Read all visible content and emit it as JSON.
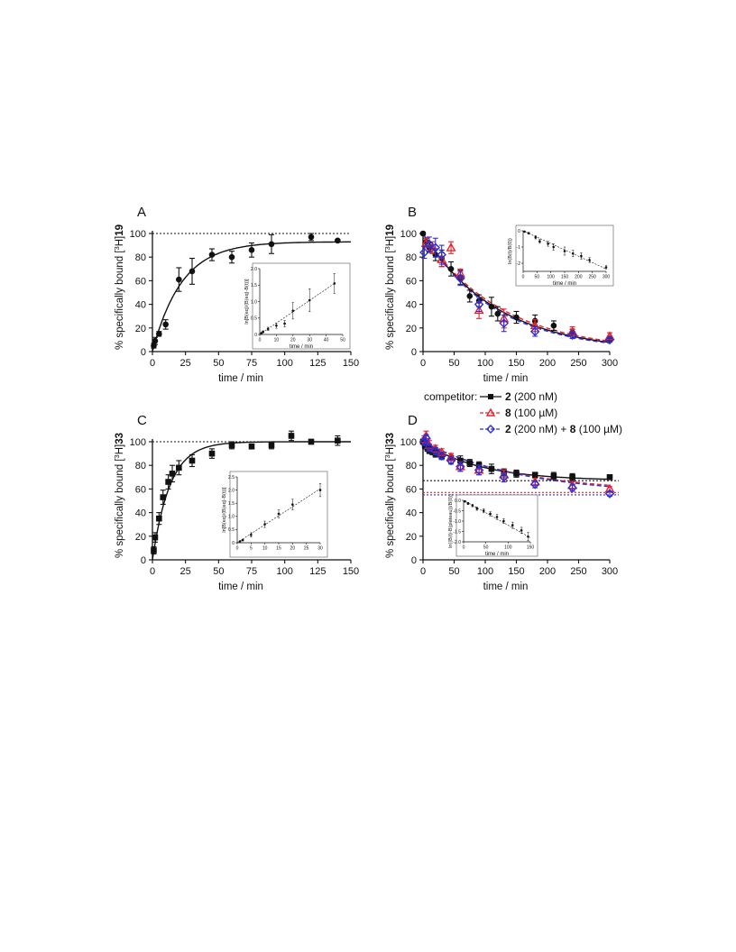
{
  "colors": {
    "black": "#111111",
    "red": "#e8202a",
    "blue": "#2d2fd6"
  },
  "legend": {
    "title": "competitor:",
    "entries": [
      {
        "bold": "2",
        "rest": " (200 nM)",
        "color": "#111111",
        "marker": "square",
        "dash": "solid"
      },
      {
        "bold": "8",
        "rest": " (100 µM)",
        "color": "#e8202a",
        "marker": "triangle",
        "dash": "dashed"
      },
      {
        "bold": "2",
        "rest": " (200 nM) + ",
        "bold2": "8",
        "rest2": " (100 µM)",
        "color": "#2d2fd6",
        "marker": "diamond",
        "dash": "dashed"
      }
    ]
  },
  "chart_data": [
    {
      "panel_label": "A",
      "type": "scatter",
      "xlabel": "time / min",
      "ylabel_prefix": "% specifically bound [",
      "ylabel_iso": "3",
      "ylabel_mid": "H]",
      "ylabel_bold": "19",
      "xlim": [
        0,
        150
      ],
      "ylim": [
        0,
        100
      ],
      "xticks": [
        0,
        25,
        50,
        75,
        100,
        125,
        150
      ],
      "yticks": [
        0,
        20,
        40,
        60,
        80,
        100
      ],
      "hline": 100,
      "marker": "circle",
      "series": [
        {
          "color": "#111111",
          "x": [
            1,
            2,
            5,
            10,
            20,
            30,
            45,
            60,
            75,
            90,
            120,
            140
          ],
          "y": [
            5,
            9,
            15,
            23,
            61,
            68,
            82,
            80,
            86,
            91,
            97,
            94
          ],
          "err": [
            2,
            3,
            2,
            4,
            10,
            11,
            5,
            5,
            6,
            8,
            3,
            1
          ]
        }
      ],
      "fit": {
        "type": "association",
        "plateau": 93,
        "k": 0.045
      },
      "inset": {
        "xlabel": "time / min",
        "ylabel": "ln[B(eq)/(B(eq)-B(t))]",
        "xlim": [
          0,
          50
        ],
        "ylim": [
          0,
          2
        ],
        "xticks": [
          0,
          10,
          20,
          30,
          40,
          50
        ],
        "yticks": [
          0,
          0.5,
          1.0,
          1.5,
          2.0
        ],
        "ytick_labels": [
          "0",
          "0.5",
          "1.0",
          "1.5",
          "2.0"
        ],
        "x": [
          1,
          2,
          5,
          10,
          15,
          20,
          30,
          45
        ],
        "y": [
          0.04,
          0.08,
          0.17,
          0.27,
          0.33,
          0.72,
          1.04,
          1.55
        ],
        "err": [
          0.02,
          0.03,
          0.05,
          0.08,
          0.1,
          0.25,
          0.35,
          0.3
        ],
        "line": [
          [
            0,
            0
          ],
          [
            45,
            1.55
          ]
        ]
      }
    },
    {
      "panel_label": "B",
      "type": "scatter",
      "xlabel": "time / min",
      "ylabel_prefix": "% specifically bound [",
      "ylabel_iso": "3",
      "ylabel_mid": "H]",
      "ylabel_bold": "19",
      "xlim": [
        0,
        300
      ],
      "ylim": [
        0,
        100
      ],
      "xticks": [
        0,
        50,
        100,
        150,
        200,
        250,
        300
      ],
      "yticks": [
        0,
        20,
        40,
        60,
        80,
        100
      ],
      "series": [
        {
          "marker": "circle",
          "color": "#111111",
          "x": [
            0,
            5,
            10,
            20,
            30,
            45,
            60,
            75,
            90,
            110,
            120,
            150,
            180,
            210,
            240,
            300
          ],
          "y": [
            100,
            93,
            88,
            82,
            79,
            70,
            63,
            47,
            43,
            38,
            32,
            29,
            26,
            22,
            16,
            11
          ],
          "err": [
            1,
            3,
            4,
            5,
            7,
            6,
            6,
            5,
            5,
            8,
            6,
            5,
            5,
            4,
            3,
            2
          ]
        },
        {
          "marker": "triangle",
          "color": "#e8202a",
          "x": [
            5,
            15,
            30,
            45,
            60,
            90,
            130,
            180,
            240,
            300
          ],
          "y": [
            92,
            88,
            78,
            88,
            66,
            35,
            28,
            22,
            17,
            13
          ],
          "err": [
            4,
            5,
            6,
            5,
            4,
            7,
            8,
            5,
            4,
            3
          ]
        },
        {
          "marker": "diamond",
          "color": "#2d2fd6",
          "x": [
            2,
            10,
            20,
            30,
            60,
            90,
            130,
            180,
            240,
            300
          ],
          "y": [
            84,
            91,
            88,
            82,
            62,
            40,
            24,
            17,
            14,
            10
          ],
          "err": [
            5,
            6,
            8,
            8,
            6,
            6,
            7,
            4,
            3,
            2
          ]
        }
      ],
      "fits": [
        {
          "color": "#111111",
          "dash": "solid",
          "span": 100,
          "plateau": 0,
          "k": 0.0085
        },
        {
          "color": "#e8202a",
          "dash": "dashed",
          "span": 100,
          "plateau": 0,
          "k": 0.0081
        },
        {
          "color": "#2d2fd6",
          "dash": "dashed",
          "span": 100,
          "plateau": 0,
          "k": 0.0088
        }
      ],
      "inset": {
        "xlabel": "time / min",
        "ylabel": "ln(B(t)/B(0))",
        "xlim": [
          0,
          300
        ],
        "ylim": [
          -2.5,
          0
        ],
        "xticks": [
          0,
          50,
          100,
          150,
          200,
          250,
          300
        ],
        "yticks": [
          0,
          -1,
          -2
        ],
        "ytick_labels": [
          "0",
          "-1",
          "-2"
        ],
        "x": [
          5,
          20,
          45,
          60,
          90,
          110,
          150,
          180,
          210,
          240,
          300
        ],
        "y": [
          -0.05,
          -0.15,
          -0.4,
          -0.65,
          -0.8,
          -1.0,
          -1.25,
          -1.4,
          -1.55,
          -1.8,
          -2.25
        ],
        "err": [
          0.03,
          0.05,
          0.1,
          0.12,
          0.15,
          0.2,
          0.25,
          0.2,
          0.2,
          0.15,
          0.1
        ],
        "line": [
          [
            0,
            0
          ],
          [
            300,
            -2.35
          ]
        ]
      }
    },
    {
      "panel_label": "C",
      "type": "scatter",
      "xlabel": "time / min",
      "ylabel_prefix": "% specifically bound [",
      "ylabel_iso": "3",
      "ylabel_mid": "H]",
      "ylabel_bold": "33",
      "xlim": [
        0,
        150
      ],
      "ylim": [
        0,
        100
      ],
      "xticks": [
        0,
        25,
        50,
        75,
        100,
        125,
        150
      ],
      "yticks": [
        0,
        20,
        40,
        60,
        80,
        100
      ],
      "hline": 100,
      "marker": "square",
      "series": [
        {
          "color": "#111111",
          "x": [
            1,
            2,
            5,
            8,
            12,
            15,
            20,
            30,
            45,
            60,
            75,
            90,
            105,
            120,
            140
          ],
          "y": [
            8,
            19,
            35,
            53,
            66,
            73,
            78,
            84,
            90,
            97,
            96,
            97,
            105,
            100,
            101
          ],
          "err": [
            3,
            4,
            5,
            6,
            6,
            7,
            6,
            5,
            4,
            3,
            2,
            3,
            4,
            2,
            4
          ]
        }
      ],
      "fit": {
        "type": "association",
        "plateau": 100,
        "k": 0.075
      },
      "inset": {
        "xlabel": "",
        "ylabel": "ln[B(eq)/(B(eq)-B(t))]",
        "xlim": [
          0,
          30
        ],
        "ylim": [
          0,
          2.5
        ],
        "xticks": [
          0,
          5,
          10,
          15,
          20,
          25,
          30
        ],
        "yticks": [
          0,
          0.5,
          1.0,
          1.5,
          2.0,
          2.5
        ],
        "ytick_labels": [
          "0",
          "0.5",
          "1.0",
          "1.5",
          "2.0",
          "2.5"
        ],
        "x": [
          1,
          2,
          5,
          10,
          15,
          20,
          30
        ],
        "y": [
          0.05,
          0.1,
          0.3,
          0.7,
          1.1,
          1.45,
          2.0
        ],
        "err": [
          0.02,
          0.03,
          0.08,
          0.12,
          0.15,
          0.2,
          0.25
        ],
        "line": [
          [
            0,
            0
          ],
          [
            30,
            2.05
          ]
        ]
      }
    },
    {
      "panel_label": "D",
      "type": "scatter",
      "xlabel": "time / min",
      "ylabel_prefix": "% specifically bound [",
      "ylabel_iso": "3",
      "ylabel_mid": "H]",
      "ylabel_bold": "33",
      "xlim": [
        0,
        300
      ],
      "ylim": [
        0,
        100
      ],
      "xticks": [
        0,
        50,
        100,
        150,
        200,
        250,
        300
      ],
      "yticks": [
        0,
        20,
        40,
        60,
        80,
        100
      ],
      "hlines": [
        {
          "y": 67,
          "color": "#111111"
        },
        {
          "y": 57,
          "color": "#e8202a"
        },
        {
          "y": 55,
          "color": "#2d2fd6"
        }
      ],
      "series": [
        {
          "marker": "square",
          "color": "#111111",
          "x": [
            0,
            3,
            7,
            10,
            15,
            20,
            30,
            45,
            60,
            75,
            90,
            110,
            130,
            150,
            180,
            210,
            240,
            300
          ],
          "y": [
            100,
            97,
            95,
            93,
            92,
            90,
            88,
            86,
            84,
            82,
            80,
            77,
            74,
            73,
            72,
            71,
            70,
            70
          ],
          "err": [
            2,
            3,
            3,
            3,
            3,
            3,
            3,
            4,
            4,
            3,
            3,
            4,
            3,
            3,
            2,
            3,
            3,
            2
          ]
        },
        {
          "marker": "triangle",
          "color": "#e8202a",
          "x": [
            2,
            5,
            10,
            20,
            30,
            45,
            60,
            90,
            130,
            180,
            240,
            300
          ],
          "y": [
            102,
            105,
            97,
            94,
            91,
            87,
            79,
            76,
            72,
            66,
            63,
            60
          ],
          "err": [
            3,
            4,
            4,
            3,
            3,
            3,
            4,
            4,
            4,
            3,
            3,
            2
          ]
        },
        {
          "marker": "diamond",
          "color": "#2d2fd6",
          "x": [
            2,
            5,
            10,
            20,
            30,
            45,
            60,
            90,
            130,
            180,
            240,
            300
          ],
          "y": [
            100,
            103,
            95,
            92,
            88,
            84,
            79,
            76,
            70,
            64,
            61,
            56
          ],
          "err": [
            3,
            3,
            3,
            3,
            3,
            3,
            4,
            4,
            4,
            3,
            3,
            2
          ]
        }
      ],
      "fits": [
        {
          "color": "#111111",
          "dash": "solid",
          "span": 33,
          "plateau": 67,
          "k": 0.011
        },
        {
          "color": "#e8202a",
          "dash": "dashed",
          "span": 43,
          "plateau": 57,
          "k": 0.0065
        },
        {
          "color": "#2d2fd6",
          "dash": "dashed",
          "span": 45,
          "plateau": 55,
          "k": 0.0062
        }
      ],
      "inset": {
        "xlabel": "time / min",
        "ylabel": "ln((B(t)-B(plateau))/B(0))",
        "xlim": [
          0,
          150
        ],
        "ylim": [
          -2.0,
          0
        ],
        "xticks": [
          0,
          50,
          100,
          150
        ],
        "yticks": [
          0,
          -0.5,
          -1.0,
          -1.5,
          -2.0
        ],
        "ytick_labels": [
          "0.0",
          "-0.5",
          "-1.0",
          "-1.5",
          "-2.0"
        ],
        "x": [
          3,
          10,
          20,
          30,
          45,
          60,
          75,
          90,
          110,
          130,
          145
        ],
        "y": [
          -0.05,
          -0.15,
          -0.25,
          -0.4,
          -0.5,
          -0.65,
          -0.8,
          -1.0,
          -1.2,
          -1.45,
          -1.75
        ],
        "err": [
          0.03,
          0.05,
          0.06,
          0.08,
          0.1,
          0.1,
          0.12,
          0.12,
          0.15,
          0.15,
          0.2
        ],
        "line": [
          [
            0,
            0
          ],
          [
            150,
            -1.8
          ]
        ]
      }
    }
  ]
}
